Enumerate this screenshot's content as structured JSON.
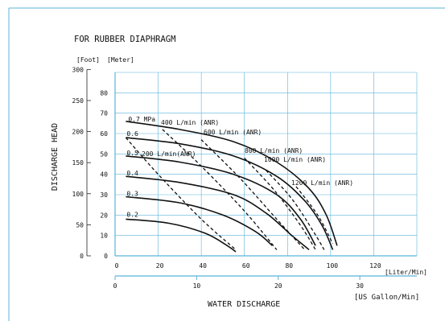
{
  "chart_data": {
    "type": "line",
    "title": "FOR RUBBER DIAPHRAGM",
    "ylabel": "DISCHARGE HEAD",
    "xlabel": "WATER DISCHARGE",
    "units": {
      "foot": "[Foot]",
      "meter": "[Meter]",
      "liter": "[Liter/Min]",
      "gallon": "[US Gallon/Min]"
    },
    "x_liter_ticks": [
      "0",
      "20",
      "40",
      "60",
      "80",
      "100",
      "120"
    ],
    "x_gallon_ticks": [
      "0",
      "10",
      "20",
      "30"
    ],
    "y_meter_ticks": [
      "0",
      "10",
      "20",
      "30",
      "40",
      "50",
      "60",
      "70",
      "80"
    ],
    "y_foot_ticks": [
      "0",
      "50",
      "100",
      "150",
      "200",
      "250",
      "300"
    ],
    "xlim": [
      0,
      140
    ],
    "ylim": [
      0,
      90
    ],
    "grid": true,
    "pressure_curves": [
      {
        "label": "0.7 MPa",
        "points": [
          [
            5,
            66
          ],
          [
            30,
            62
          ],
          [
            55,
            56
          ],
          [
            75,
            46
          ],
          [
            90,
            33
          ],
          [
            98,
            20
          ],
          [
            103,
            5
          ]
        ]
      },
      {
        "label": "0.6",
        "points": [
          [
            5,
            58
          ],
          [
            30,
            55
          ],
          [
            55,
            49
          ],
          [
            75,
            39
          ],
          [
            88,
            27
          ],
          [
            96,
            15
          ],
          [
            101,
            3
          ]
        ]
      },
      {
        "label": "0.5",
        "points": [
          [
            5,
            49
          ],
          [
            30,
            46
          ],
          [
            55,
            40
          ],
          [
            75,
            30
          ],
          [
            86,
            18
          ],
          [
            93,
            5
          ]
        ]
      },
      {
        "label": "0.4",
        "points": [
          [
            5,
            39
          ],
          [
            30,
            36
          ],
          [
            55,
            30
          ],
          [
            70,
            21
          ],
          [
            82,
            10
          ],
          [
            90,
            3
          ]
        ]
      },
      {
        "label": "0.3",
        "points": [
          [
            5,
            29
          ],
          [
            30,
            26
          ],
          [
            50,
            20
          ],
          [
            65,
            12
          ],
          [
            73,
            5
          ]
        ]
      },
      {
        "label": "0.2",
        "points": [
          [
            5,
            18
          ],
          [
            25,
            16
          ],
          [
            42,
            11
          ],
          [
            52,
            5
          ],
          [
            56,
            2
          ]
        ]
      }
    ],
    "flow_lines": [
      {
        "label": "200 L/min(ANR)",
        "points": [
          [
            5,
            58
          ],
          [
            20,
            40
          ],
          [
            40,
            18
          ],
          [
            56,
            3
          ]
        ]
      },
      {
        "label": "400 L/min (ANR)",
        "points": [
          [
            22,
            62
          ],
          [
            40,
            44
          ],
          [
            60,
            22
          ],
          [
            75,
            3
          ]
        ]
      },
      {
        "label": "600 L/min (ANR)",
        "points": [
          [
            40,
            57
          ],
          [
            58,
            38
          ],
          [
            75,
            18
          ],
          [
            88,
            3
          ]
        ]
      },
      {
        "label": "800 L/min (ANR)",
        "points": [
          [
            60,
            48
          ],
          [
            74,
            32
          ],
          [
            86,
            15
          ],
          [
            93,
            3
          ]
        ]
      },
      {
        "label": "1000 L/min (ANR)",
        "points": [
          [
            70,
            42
          ],
          [
            82,
            28
          ],
          [
            92,
            12
          ],
          [
            97,
            3
          ]
        ]
      },
      {
        "label": "1200 L/min (ANR)",
        "points": [
          [
            84,
            34
          ],
          [
            94,
            20
          ],
          [
            101,
            6
          ]
        ]
      }
    ]
  }
}
